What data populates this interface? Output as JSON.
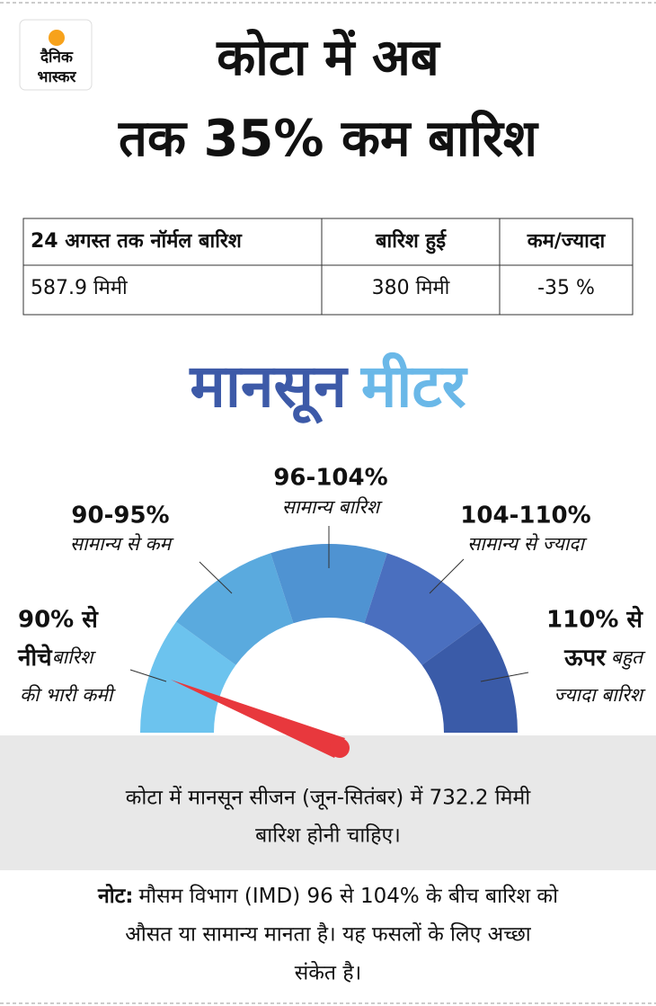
{
  "logo": {
    "line1": "दैनिक",
    "line2": "भास्कर"
  },
  "header": {
    "title_line1": "कोटा में अब",
    "title_line2": "तक 35% कम बारिश"
  },
  "table": {
    "headers": [
      "24 अगस्त तक नॉर्मल बारिश",
      "बारिश हुई",
      "कम/ज्यादा"
    ],
    "rows": [
      [
        "587.9 मिमी",
        "380 मिमी",
        "-35 %"
      ]
    ]
  },
  "meter": {
    "title_part1": "मानसून",
    "title_part2": "मीटर",
    "segments": [
      {
        "range_line1": "90% से",
        "range_line2": "नीचे",
        "desc_line1": "बारिश",
        "desc_line2": "की भारी कमी",
        "color": "#6cc3ee"
      },
      {
        "range": "90-95%",
        "desc": "सामान्य से कम",
        "color": "#5aaade"
      },
      {
        "range": "96-104%",
        "desc": "सामान्य बारिश",
        "color": "#4f93d2"
      },
      {
        "range": "104-110%",
        "desc": "सामान्य से ज्यादा",
        "color": "#4a6fbf"
      },
      {
        "range_line1": "110% से",
        "range_line2": "ऊपर",
        "desc_line1": "बहुत",
        "desc_line2": "ज्यादा बारिश",
        "color": "#3a5ba8"
      }
    ]
  },
  "info": {
    "line1": "कोटा में मानसून सीजन (जून-सितंबर) में 732.2 मिमी",
    "line2": "बारिश होनी चाहिए।"
  },
  "note": {
    "label": "नोट:",
    "line1": "मौसम विभाग (IMD) 96 से 104% के बीच बारिश को",
    "line2": "औसत या सामान्य मानता है। यह फसलों के लिए अच्छा",
    "line3": "संकेत है।"
  }
}
